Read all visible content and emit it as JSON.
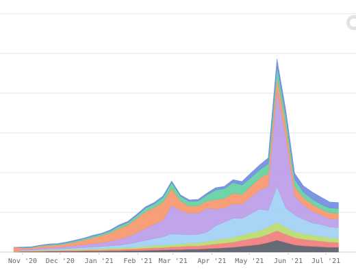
{
  "chart_data": {
    "type": "area",
    "stacked": true,
    "title": "",
    "xlabel": "",
    "ylabel": "",
    "grid": true,
    "y_ticks_visible": false,
    "x_tick_labels": [
      "Nov '20",
      "Dec '20",
      "Jan '21",
      "Feb '21",
      "Mar '21",
      "Apr '21",
      "May '21",
      "Jun '21",
      "Jul '21"
    ],
    "ylim": [
      0,
      100
    ],
    "dates": [
      "2020-10-25",
      "2020-11-01",
      "2020-11-08",
      "2020-11-15",
      "2020-11-22",
      "2020-11-29",
      "2020-12-06",
      "2020-12-13",
      "2020-12-20",
      "2020-12-27",
      "2021-01-03",
      "2021-01-10",
      "2021-01-17",
      "2021-01-24",
      "2021-01-31",
      "2021-02-07",
      "2021-02-14",
      "2021-02-21",
      "2021-02-28",
      "2021-03-07",
      "2021-03-14",
      "2021-03-21",
      "2021-03-28",
      "2021-04-04",
      "2021-04-11",
      "2021-04-18",
      "2021-04-25",
      "2021-05-02",
      "2021-05-09",
      "2021-05-16",
      "2021-05-23",
      "2021-05-30",
      "2021-06-06",
      "2021-06-13",
      "2021-06-20",
      "2021-06-27",
      "2021-07-04",
      "2021-07-11"
    ],
    "series": [
      {
        "color": "#555a66",
        "values": [
          0,
          0.2,
          0.2,
          0.2,
          0.3,
          0.3,
          0.3,
          0.3,
          0.4,
          0.4,
          0.4,
          0.5,
          0.5,
          0.6,
          0.6,
          0.7,
          0.8,
          0.9,
          1,
          1,
          1.2,
          1.2,
          1.4,
          1.6,
          1.8,
          2,
          2.4,
          2.8,
          3.2,
          4,
          5,
          4,
          3,
          2.6,
          2.4,
          2.2,
          2,
          2
        ]
      },
      {
        "color": "#f07a7a",
        "values": [
          0,
          0.2,
          0.2,
          0.3,
          0.3,
          0.3,
          0.4,
          0.4,
          0.4,
          0.5,
          0.5,
          0.6,
          0.6,
          0.7,
          0.8,
          0.9,
          1,
          1,
          1.2,
          1.3,
          1.4,
          1.4,
          1.6,
          1.8,
          2,
          2.2,
          2.5,
          2.8,
          3,
          3.5,
          4,
          3.5,
          3,
          2.8,
          2.6,
          2.4,
          2.2,
          2
        ]
      },
      {
        "color": "#b8d96a",
        "values": [
          0,
          0.2,
          0.2,
          0.3,
          0.3,
          0.3,
          0.3,
          0.4,
          0.4,
          0.4,
          0.5,
          0.5,
          0.6,
          0.6,
          0.7,
          0.8,
          0.9,
          1,
          1,
          1.1,
          1.2,
          1.3,
          1.4,
          1.6,
          1.8,
          2,
          2.2,
          2.5,
          2.8,
          3,
          3.5,
          3,
          2.6,
          2.4,
          2.2,
          2,
          1.8,
          1.8
        ]
      },
      {
        "color": "#9fd0f5",
        "values": [
          0,
          0.2,
          0.2,
          0.3,
          0.4,
          0.4,
          0.5,
          0.6,
          0.7,
          0.8,
          0.9,
          1,
          1.2,
          1.5,
          2,
          2.5,
          3,
          3.5,
          4.5,
          4,
          3.5,
          3.5,
          4,
          6,
          7,
          8,
          7,
          8,
          9,
          7,
          15,
          8,
          7,
          6,
          5,
          5,
          4.5,
          4.5
        ]
      },
      {
        "color": "#b99be8",
        "values": [
          0,
          0.3,
          0.4,
          0.5,
          0.6,
          0.7,
          0.8,
          1,
          1.2,
          1.4,
          1.6,
          2,
          2.5,
          3,
          4,
          5,
          6,
          7,
          12,
          10,
          9,
          9,
          10,
          7,
          6,
          6,
          6,
          7,
          8,
          10,
          40,
          30,
          8,
          6,
          5,
          4,
          3.5,
          3.5
        ]
      },
      {
        "color": "#f5956a",
        "values": [
          2,
          0.6,
          0.6,
          0.8,
          1,
          1,
          1.2,
          1.5,
          2,
          2.5,
          3,
          3.5,
          4.5,
          5,
          6,
          7,
          7,
          7.5,
          7,
          4,
          3,
          3,
          3,
          4,
          4,
          4.5,
          4,
          4.5,
          5,
          5.5,
          6,
          5,
          4,
          3,
          3,
          2.5,
          2.5,
          2.5
        ]
      },
      {
        "color": "#5fcf9e",
        "values": [
          0,
          0.2,
          0.2,
          0.3,
          0.3,
          0.3,
          0.4,
          0.5,
          0.5,
          0.6,
          0.6,
          0.8,
          1,
          1,
          1.2,
          1.5,
          1.5,
          2,
          2.5,
          2,
          2,
          2,
          2.5,
          4,
          4,
          4.5,
          4,
          3.5,
          3.5,
          4,
          4.5,
          3.5,
          3,
          2.5,
          2,
          2,
          2,
          2
        ]
      },
      {
        "color": "#6f8be0",
        "values": [
          0,
          0.2,
          0.2,
          0.2,
          0.2,
          0.3,
          0.3,
          0.3,
          0.3,
          0.4,
          0.4,
          0.4,
          0.5,
          0.5,
          0.5,
          0.6,
          0.6,
          0.6,
          0.6,
          0.6,
          0.6,
          0.7,
          0.8,
          1,
          1,
          1.2,
          1.5,
          2,
          2,
          2.5,
          3,
          2.5,
          2.5,
          2.5,
          3,
          3,
          2.5,
          2.5
        ]
      }
    ]
  },
  "icons": {
    "corner": "loading-ring-icon"
  }
}
